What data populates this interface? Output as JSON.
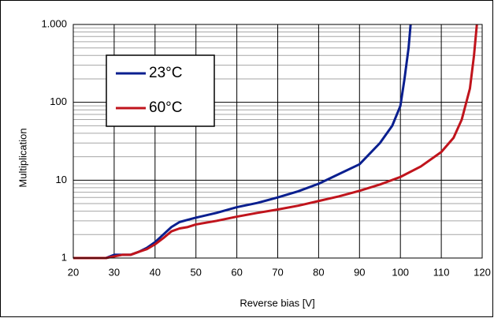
{
  "chart_data": {
    "type": "line",
    "x_label": "Reverse bias [V]",
    "y_label": "Multiplication",
    "xlim": [
      20,
      120
    ],
    "xticks": [
      20,
      30,
      40,
      50,
      60,
      70,
      80,
      90,
      100,
      110,
      120
    ],
    "ylim": [
      1,
      1000
    ],
    "yticks": [
      1,
      10,
      100,
      {
        "value": 1000,
        "label": "1.000"
      }
    ],
    "y_scale": "log",
    "grid": true,
    "legend": "upper left",
    "series": [
      {
        "name": "23°C",
        "color": "#0a1f8f",
        "x": [
          20,
          28,
          30,
          32,
          34,
          36,
          38,
          40,
          42,
          44,
          46,
          48,
          50,
          55,
          60,
          65,
          70,
          75,
          80,
          85,
          90,
          95,
          98,
          100,
          101,
          102,
          102.5
        ],
        "values": [
          1,
          1,
          1.1,
          1.1,
          1.1,
          1.2,
          1.35,
          1.6,
          2.0,
          2.5,
          2.9,
          3.1,
          3.3,
          3.8,
          4.5,
          5.1,
          6.0,
          7.2,
          9,
          12,
          16,
          30,
          50,
          90,
          200,
          500,
          1000
        ]
      },
      {
        "name": "60°C",
        "color": "#c0141c",
        "x": [
          20,
          28,
          30,
          32,
          34,
          36,
          38,
          40,
          42,
          44,
          46,
          48,
          50,
          55,
          60,
          65,
          70,
          75,
          80,
          85,
          90,
          95,
          100,
          105,
          110,
          113,
          115,
          117,
          118,
          118.7
        ],
        "values": [
          1,
          1,
          1.05,
          1.1,
          1.1,
          1.2,
          1.3,
          1.5,
          1.8,
          2.2,
          2.4,
          2.5,
          2.7,
          3.0,
          3.4,
          3.8,
          4.2,
          4.7,
          5.4,
          6.2,
          7.3,
          8.8,
          11,
          15,
          23,
          35,
          60,
          150,
          400,
          1000
        ]
      }
    ]
  }
}
